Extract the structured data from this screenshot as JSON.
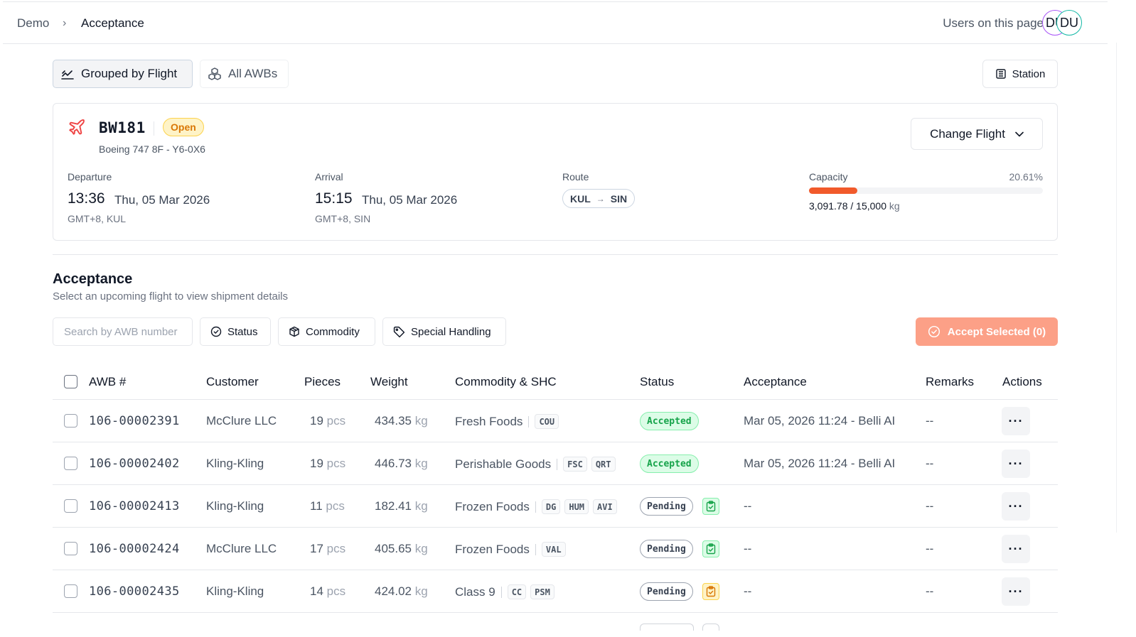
{
  "breadcrumb": {
    "root": "Demo",
    "separator": "›",
    "current": "Acceptance"
  },
  "presence": {
    "label": "Users on this page",
    "avatars": [
      "DU",
      "DU"
    ]
  },
  "view_toggle": {
    "grouped": "Grouped by Flight",
    "all": "All AWBs"
  },
  "station_button": "Station",
  "flight": {
    "number": "BW181",
    "status": "Open",
    "aircraft": "Boeing 747 8F - Y6-0X6",
    "change_button": "Change Flight",
    "departure": {
      "label": "Departure",
      "time": "13:36",
      "date": "Thu, 05 Mar 2026",
      "tz": "GMT+8, KUL"
    },
    "arrival": {
      "label": "Arrival",
      "time": "15:15",
      "date": "Thu, 05 Mar 2026",
      "tz": "GMT+8, SIN"
    },
    "route": {
      "label": "Route",
      "from": "KUL",
      "arrow": "→",
      "to": "SIN"
    },
    "capacity": {
      "label": "Capacity",
      "percent_text": "20.61%",
      "fraction": 0.2061,
      "used": "3,091.78",
      "sep": " / ",
      "total": "15,000",
      "unit": "kg"
    }
  },
  "section": {
    "title": "Acceptance",
    "subtitle": "Select an upcoming flight to view shipment details"
  },
  "filters": {
    "search_placeholder": "Search by AWB number",
    "status": "Status",
    "commodity": "Commodity",
    "special_handling": "Special Handling",
    "accept_selected": "Accept Selected (0)"
  },
  "table": {
    "headers": {
      "awb": "AWB #",
      "customer": "Customer",
      "pieces": "Pieces",
      "weight": "Weight",
      "commodity": "Commodity & SHC",
      "status": "Status",
      "acceptance": "Acceptance",
      "remarks": "Remarks",
      "actions": "Actions"
    },
    "pcs_unit": "pcs",
    "kg_unit": "kg",
    "action_label": "···",
    "rows": [
      {
        "awb": "106-00002391",
        "customer": "McClure LLC",
        "pieces": "19",
        "weight": "434.35",
        "commodity": "Fresh Foods",
        "shc": [
          "COU"
        ],
        "status": "Accepted",
        "clip": "",
        "acceptance": "Mar 05, 2026 11:24 - Belli AI",
        "remarks": "--"
      },
      {
        "awb": "106-00002402",
        "customer": "Kling-Kling",
        "pieces": "19",
        "weight": "446.73",
        "commodity": "Perishable Goods",
        "shc": [
          "FSC",
          "QRT"
        ],
        "status": "Accepted",
        "clip": "",
        "acceptance": "Mar 05, 2026 11:24 - Belli AI",
        "remarks": "--"
      },
      {
        "awb": "106-00002413",
        "customer": "Kling-Kling",
        "pieces": "11",
        "weight": "182.41",
        "commodity": "Frozen Foods",
        "shc": [
          "DG",
          "HUM",
          "AVI"
        ],
        "status": "Pending",
        "clip": "green",
        "acceptance": "--",
        "remarks": "--"
      },
      {
        "awb": "106-00002424",
        "customer": "McClure LLC",
        "pieces": "17",
        "weight": "405.65",
        "commodity": "Frozen Foods",
        "shc": [
          "VAL"
        ],
        "status": "Pending",
        "clip": "green",
        "acceptance": "--",
        "remarks": "--"
      },
      {
        "awb": "106-00002435",
        "customer": "Kling-Kling",
        "pieces": "14",
        "weight": "424.02",
        "commodity": "Class 9",
        "shc": [
          "CC",
          "PSM"
        ],
        "status": "Pending",
        "clip": "yellow",
        "acceptance": "--",
        "remarks": "--"
      }
    ]
  },
  "colors": {
    "accent": "#f15a2b",
    "accent_disabled": "#fca087",
    "accepted_bg": "#dcfce7",
    "accepted_text": "#16a34a",
    "open_bg": "#fef3c7",
    "open_text": "#d97706"
  },
  "icons": {
    "plane": "plane-icon",
    "grouped": "chart-line-icon",
    "all": "boxes-icon",
    "station": "building-icon",
    "status": "check-circle-icon",
    "commodity": "package-icon",
    "special_handling": "tag-icon",
    "clipboard": "clipboard-check-icon"
  }
}
